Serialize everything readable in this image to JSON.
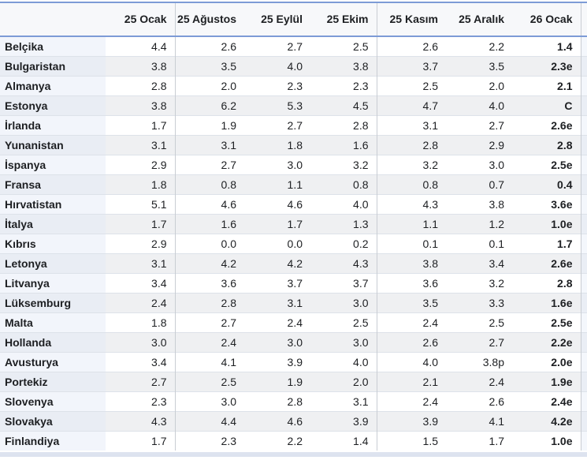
{
  "chart_data": {
    "type": "table",
    "corner_label": "",
    "columns": [
      "25 Ocak",
      "25 Ağustos",
      "25 Eylül",
      "25 Ekim",
      "25 Kasım",
      "25 Aralık",
      "26 Ocak"
    ],
    "rows": [
      {
        "label": "Belçika",
        "values": [
          "4.4",
          "2.6",
          "2.7",
          "2.5",
          "2.6",
          "2.2",
          "1.4"
        ]
      },
      {
        "label": "Bulgaristan",
        "values": [
          "3.8",
          "3.5",
          "4.0",
          "3.8",
          "3.7",
          "3.5",
          "2.3e"
        ]
      },
      {
        "label": "Almanya",
        "values": [
          "2.8",
          "2.0",
          "2.3",
          "2.3",
          "2.5",
          "2.0",
          "2.1"
        ]
      },
      {
        "label": "Estonya",
        "values": [
          "3.8",
          "6.2",
          "5.3",
          "4.5",
          "4.7",
          "4.0",
          "C"
        ]
      },
      {
        "label": "İrlanda",
        "values": [
          "1.7",
          "1.9",
          "2.7",
          "2.8",
          "3.1",
          "2.7",
          "2.6e"
        ]
      },
      {
        "label": "Yunanistan",
        "values": [
          "3.1",
          "3.1",
          "1.8",
          "1.6",
          "2.8",
          "2.9",
          "2.8"
        ]
      },
      {
        "label": "İspanya",
        "values": [
          "2.9",
          "2.7",
          "3.0",
          "3.2",
          "3.2",
          "3.0",
          "2.5e"
        ]
      },
      {
        "label": "Fransa",
        "values": [
          "1.8",
          "0.8",
          "1.1",
          "0.8",
          "0.8",
          "0.7",
          "0.4"
        ]
      },
      {
        "label": "Hırvatistan",
        "values": [
          "5.1",
          "4.6",
          "4.6",
          "4.0",
          "4.3",
          "3.8",
          "3.6e"
        ]
      },
      {
        "label": "İtalya",
        "values": [
          "1.7",
          "1.6",
          "1.7",
          "1.3",
          "1.1",
          "1.2",
          "1.0e"
        ]
      },
      {
        "label": "Kıbrıs",
        "values": [
          "2.9",
          "0.0",
          "0.0",
          "0.2",
          "0.1",
          "0.1",
          "1.7"
        ]
      },
      {
        "label": "Letonya",
        "values": [
          "3.1",
          "4.2",
          "4.2",
          "4.3",
          "3.8",
          "3.4",
          "2.6e"
        ]
      },
      {
        "label": "Litvanya",
        "values": [
          "3.4",
          "3.6",
          "3.7",
          "3.7",
          "3.6",
          "3.2",
          "2.8"
        ]
      },
      {
        "label": "Lüksemburg",
        "values": [
          "2.4",
          "2.8",
          "3.1",
          "3.0",
          "3.5",
          "3.3",
          "1.6e"
        ]
      },
      {
        "label": "Malta",
        "values": [
          "1.8",
          "2.7",
          "2.4",
          "2.5",
          "2.4",
          "2.5",
          "2.5e"
        ]
      },
      {
        "label": "Hollanda",
        "values": [
          "3.0",
          "2.4",
          "3.0",
          "3.0",
          "2.6",
          "2.7",
          "2.2e"
        ]
      },
      {
        "label": "Avusturya",
        "values": [
          "3.4",
          "4.1",
          "3.9",
          "4.0",
          "4.0",
          "3.8p",
          "2.0e"
        ]
      },
      {
        "label": "Portekiz",
        "values": [
          "2.7",
          "2.5",
          "1.9",
          "2.0",
          "2.1",
          "2.4",
          "1.9e"
        ]
      },
      {
        "label": "Slovenya",
        "values": [
          "2.3",
          "3.0",
          "2.8",
          "3.1",
          "2.4",
          "2.6",
          "2.4e"
        ]
      },
      {
        "label": "Slovakya",
        "values": [
          "4.3",
          "4.4",
          "4.6",
          "3.9",
          "3.9",
          "4.1",
          "4.2e"
        ]
      },
      {
        "label": "Finlandiya",
        "values": [
          "1.7",
          "2.3",
          "2.2",
          "1.4",
          "1.5",
          "1.7",
          "1.0e"
        ]
      }
    ],
    "layout_hints": {
      "grouped_column_dividers_before": [
        "25 Ağustos",
        "25 Kasım"
      ],
      "bold_column": "26 Ocak",
      "row_striping": "alternating"
    }
  },
  "colors": {
    "accent_blue": "#7d9bd6",
    "header_bg": "#f7f8fa",
    "row_alt_bg": "#eff0f2",
    "label_col_bg_odd": "#f2f5fb",
    "label_col_bg_even": "#e9edf4",
    "divider_gray": "#c9cdd3",
    "row_border": "#dde2e9",
    "text": "#1d1f22"
  }
}
